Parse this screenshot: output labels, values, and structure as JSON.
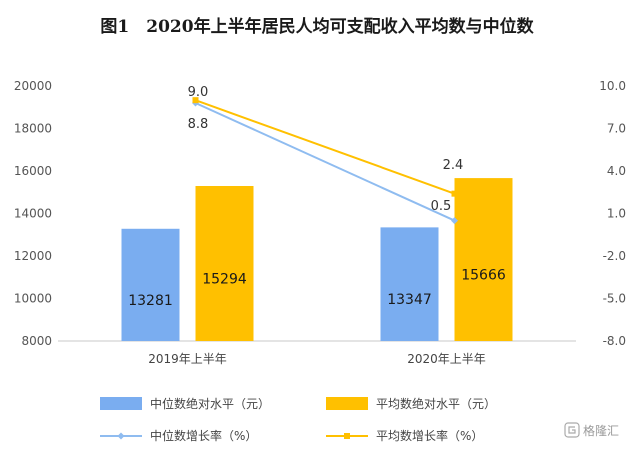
{
  "chart_data": {
    "type": "bar",
    "title": "图1　2020年上半年居民人均可支配收入平均数与中位数",
    "categories": [
      "2019年上半年",
      "2020年上半年"
    ],
    "ylim": [
      8000,
      20000
    ],
    "y_ticks": [
      "8000",
      "10000",
      "12000",
      "14000",
      "16000",
      "18000",
      "20000"
    ],
    "y2lim": [
      -8.0,
      10.0
    ],
    "y2_ticks": [
      "-8.0",
      "-5.0",
      "-2.0",
      "1.0",
      "4.0",
      "7.0",
      "10.0"
    ],
    "series": [
      {
        "name": "中位数绝对水平（元）",
        "type": "bar",
        "axis": "left",
        "color": "#7aadf0",
        "values": [
          13281,
          13347
        ],
        "labels": [
          "13281",
          "13347"
        ]
      },
      {
        "name": "平均数绝对水平（元）",
        "type": "bar",
        "axis": "left",
        "color": "#ffc000",
        "values": [
          15294,
          15666
        ],
        "labels": [
          "15294",
          "15666"
        ]
      },
      {
        "name": "中位数增长率（%）",
        "type": "line",
        "axis": "right",
        "color": "#8fbcf0",
        "values": [
          8.8,
          0.5
        ],
        "labels": [
          "8.8",
          "0.5"
        ]
      },
      {
        "name": "平均数增长率（%）",
        "type": "line",
        "axis": "right",
        "color": "#ffc000",
        "values": [
          9.0,
          2.4
        ],
        "labels": [
          "9.0",
          "2.4"
        ]
      }
    ],
    "legend_position": "bottom",
    "grid": false
  },
  "watermark": "格隆汇"
}
